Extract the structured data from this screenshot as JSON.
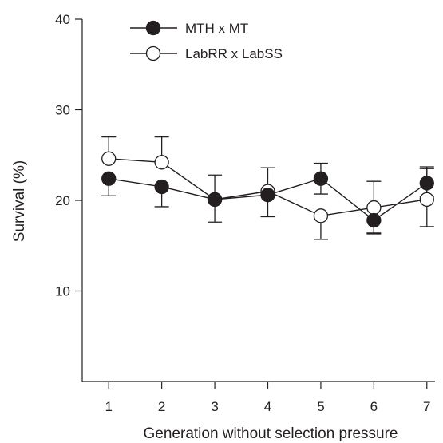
{
  "chart_data": {
    "type": "line",
    "title": "",
    "xlabel": "Generation without selection pressure",
    "ylabel": "Survival (%)",
    "x": [
      1,
      2,
      3,
      4,
      5,
      6,
      7
    ],
    "xlim": [
      0.5,
      7.5
    ],
    "ylim": [
      0,
      40
    ],
    "xticks": [
      "1",
      "2",
      "3",
      "4",
      "5",
      "6",
      "7"
    ],
    "yticks": [
      {
        "value": 10,
        "label": "10"
      },
      {
        "value": 20,
        "label": "20"
      },
      {
        "value": 30,
        "label": "30"
      },
      {
        "value": 40,
        "label": "40"
      }
    ],
    "grid": false,
    "legend": "top-left",
    "series": [
      {
        "name": "MTH x MT",
        "marker": "filled-circle",
        "color": "#231f20",
        "values": [
          22.4,
          21.5,
          20.1,
          20.6,
          22.4,
          17.8,
          21.9
        ],
        "err_low": [
          1.9,
          2.2,
          2.5,
          2.4,
          1.7,
          1.5,
          1.5
        ],
        "err_high": [
          0.0,
          0.0,
          0.0,
          0.0,
          1.7,
          0.0,
          1.8
        ]
      },
      {
        "name": "LabRR x LabSS",
        "marker": "open-circle",
        "color": "#231f20",
        "values": [
          24.6,
          24.2,
          20.1,
          21.0,
          18.3,
          19.2,
          20.1
        ],
        "err_low": [
          0.0,
          0.0,
          0.0,
          0.0,
          2.6,
          2.8,
          3.0
        ],
        "err_high": [
          2.4,
          2.8,
          2.7,
          2.6,
          0.0,
          2.9,
          3.4
        ]
      }
    ]
  }
}
